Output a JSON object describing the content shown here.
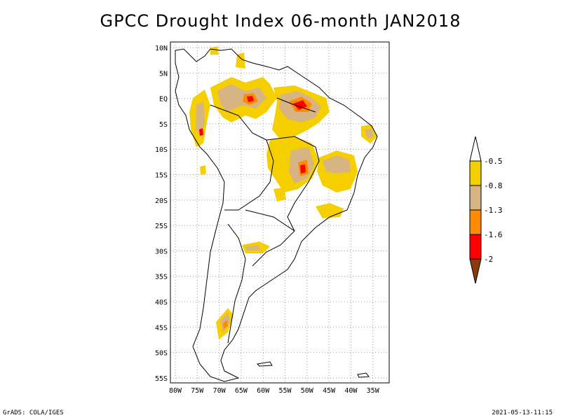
{
  "title": "GPCC Drought Index 06-month JAN2018",
  "lat_labels": [
    "10N",
    "5N",
    "EQ",
    "5S",
    "10S",
    "15S",
    "20S",
    "25S",
    "30S",
    "35S",
    "40S",
    "45S",
    "50S",
    "55S"
  ],
  "lon_labels": [
    "80W",
    "75W",
    "70W",
    "65W",
    "60W",
    "55W",
    "50W",
    "45W",
    "40W",
    "35W"
  ],
  "colorbar": {
    "labels": [
      "-0.5",
      "-0.8",
      "-1.3",
      "-1.6",
      "-2"
    ],
    "colors": [
      "#ffffff",
      "#f6cf00",
      "#d6b483",
      "#ff8c00",
      "#ff0000",
      "#8b3a0e"
    ]
  },
  "footer_left": "GrADS: COLA/IGES",
  "footer_right": "2021-05-13-11:15"
}
